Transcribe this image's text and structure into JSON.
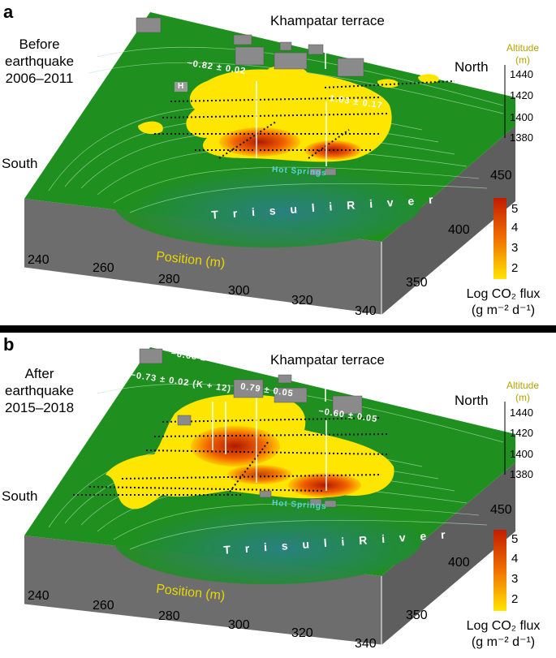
{
  "panels": [
    {
      "letter": "a",
      "period_line1": "Before",
      "period_line2": "earthquake",
      "period_line3": "2006–2011",
      "terrace": "Khampatar terrace",
      "north": "North",
      "south": "South",
      "river": "T r i s u l i   R i v e r",
      "springs": "Hot Springs",
      "helipad": "H",
      "fault_labels": [
        "−0.82 ± 0.02",
        "1.03 ± 0.17"
      ]
    },
    {
      "letter": "b",
      "period_line1": "After",
      "period_line2": "earthquake",
      "period_line3": "2015–2018",
      "terrace": "Khampatar terrace",
      "north": "North",
      "south": "South",
      "river": "T r i s u l i   R i v e r",
      "springs": "Hot Springs",
      "helipad": "",
      "fault_labels": [
        "−0.68 ± 0.10 (K + 6)",
        "−0.73 ± 0.02 (K + 12)",
        "0.79 ± 0.05",
        "−0.60 ± 0.05"
      ]
    }
  ],
  "altitude_axis": {
    "title_line1": "Altitude",
    "title_line2": "(m)",
    "ticks": [
      "1440",
      "1420",
      "1400",
      "1380"
    ]
  },
  "position_axis": {
    "title": "Position (m)",
    "ticks": [
      "240",
      "260",
      "280",
      "300",
      "320",
      "340"
    ]
  },
  "y_axis": {
    "ticks": [
      "450",
      "400",
      "350"
    ]
  },
  "legend": {
    "title_line1": "Log CO₂ flux",
    "title_line2": "(g m⁻² d⁻¹)",
    "ticks": [
      "5",
      "4",
      "3",
      "2"
    ]
  },
  "colors": {
    "terrain": "#1f8f1f",
    "valley": "#1f6f80",
    "base": "#6d6d6d",
    "flux_low": "#ffe600",
    "flux_high": "#c21b00",
    "axis_labels": "#e8d800"
  }
}
